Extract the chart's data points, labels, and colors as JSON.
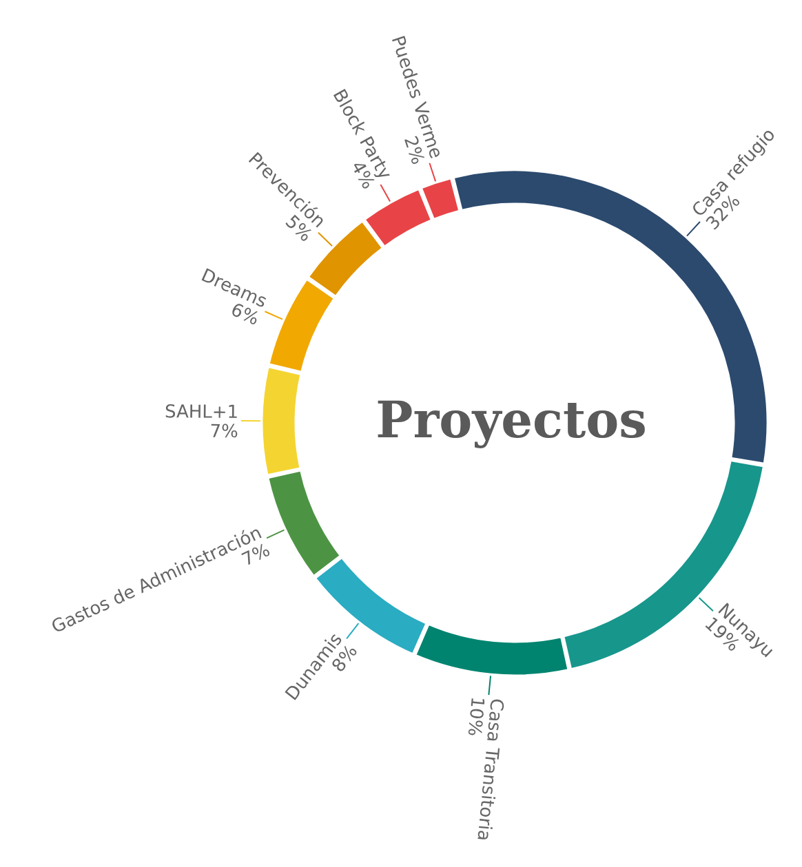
{
  "chart_data": {
    "type": "donut",
    "title": "Proyectos",
    "categories": [
      "Casa refugio",
      "Nunayu",
      "Casa Transitoria",
      "Dunamis",
      "Gastos de Administración",
      "SAHL+1",
      "Dreams",
      "Prevención",
      "Block Party",
      "Puedes Verme"
    ],
    "values": [
      32,
      19,
      10,
      8,
      7,
      7,
      6,
      5,
      4,
      2
    ],
    "value_labels": [
      "32%",
      "19%",
      "10%",
      "8%",
      "7%",
      "7%",
      "6%",
      "5%",
      "4%",
      "2%"
    ],
    "colors": [
      "#2c4a6e",
      "#17968c",
      "#008470",
      "#2aacc2",
      "#4c9444",
      "#f4d430",
      "#f1a800",
      "#e09400",
      "#e84447",
      "#e84447"
    ]
  }
}
